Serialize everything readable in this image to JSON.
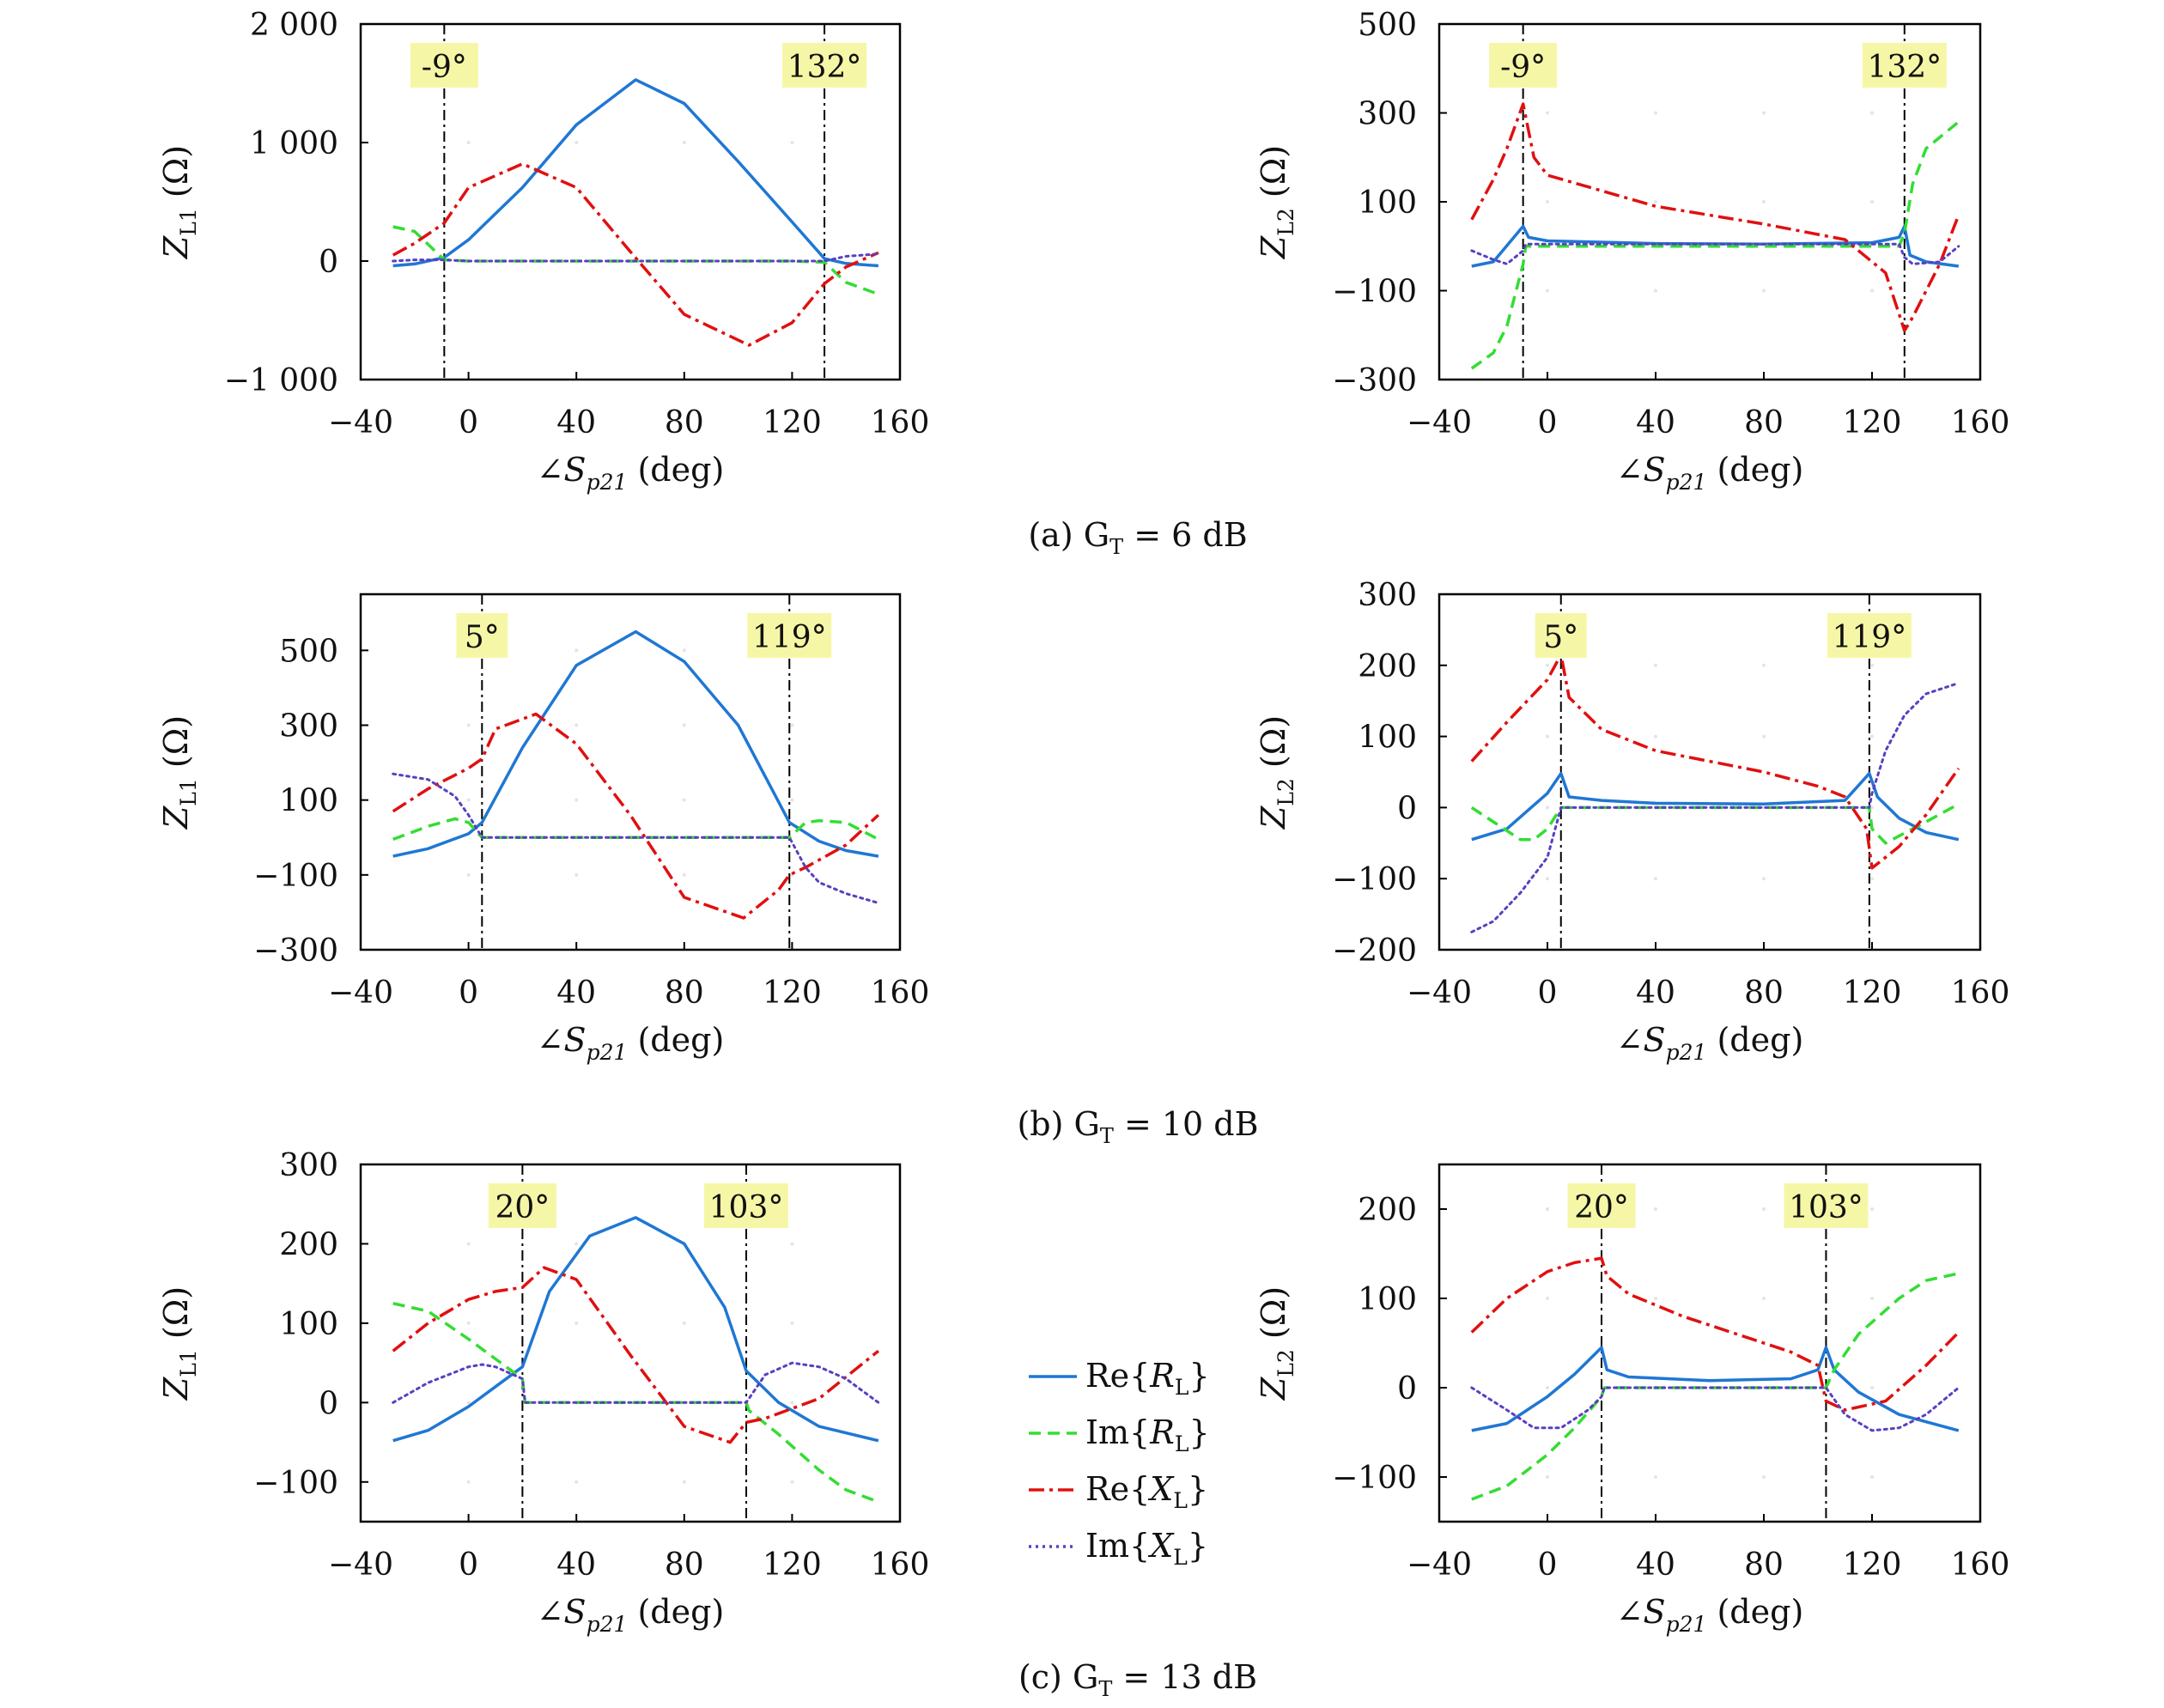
{
  "figure": {
    "captions": [
      "(a) G",
      "(b) G",
      "(c) G"
    ],
    "caption_sub": "T",
    "caption_rest": [
      " = 6 dB",
      " = 10 dB",
      " = 13 dB"
    ]
  },
  "axes_text": {
    "x_prefix": "∠S",
    "x_sub": "p21",
    "x_suffix": " (deg)",
    "y_prefix": "Z",
    "y_sub_left": "L1",
    "y_sub_right": "L2",
    "y_suffix": " (Ω)"
  },
  "legend": {
    "items": [
      {
        "prefix": "Re{",
        "sym": "R",
        "sub": "L",
        "suffix": "}",
        "color": "#1f77d4",
        "style": "solid"
      },
      {
        "prefix": "Im{",
        "sym": "R",
        "sub": "L",
        "suffix": "}",
        "color": "#33dd33",
        "style": "dashed"
      },
      {
        "prefix": "Re{",
        "sym": "X",
        "sub": "L",
        "suffix": "}",
        "color": "#e01010",
        "style": "dashdot"
      },
      {
        "prefix": "Im{",
        "sym": "X",
        "sub": "L",
        "suffix": "}",
        "color": "#5a3fc0",
        "style": "dotted"
      }
    ]
  },
  "colors": {
    "re_r": "#1f77d4",
    "im_r": "#33dd33",
    "re_x": "#e01010",
    "im_x": "#5a3fc0",
    "marker_bg": "#f6f7a6",
    "frame": "#000000"
  },
  "chart_data": [
    {
      "type": "line",
      "panel": "a-left",
      "xlim": [
        -40,
        160
      ],
      "ylim": [
        -1000,
        2000
      ],
      "xticks": [
        -40,
        0,
        40,
        80,
        120,
        160
      ],
      "xtick_labels": [
        "−40",
        "0",
        "40",
        "80",
        "120",
        "160"
      ],
      "yticks": [
        -1000,
        0,
        1000,
        2000
      ],
      "ytick_labels": [
        "−1 000",
        "0",
        "1 000",
        "2 000"
      ],
      "markers": [
        {
          "x": -9,
          "label": "-9°"
        },
        {
          "x": 132,
          "label": "132°"
        }
      ],
      "series": [
        {
          "x": [
            -28,
            -20,
            -9,
            0,
            20,
            40,
            62,
            80,
            100,
            120,
            132,
            140,
            152
          ],
          "y": [
            -40,
            -25,
            30,
            180,
            620,
            1150,
            1530,
            1330,
            840,
            330,
            20,
            -20,
            -40
          ]
        },
        {
          "x": [
            -28,
            -20,
            -9,
            0,
            20,
            40,
            80,
            120,
            132,
            140,
            152
          ],
          "y": [
            290,
            250,
            10,
            0,
            0,
            0,
            0,
            0,
            -10,
            -180,
            -280
          ]
        },
        {
          "x": [
            -28,
            -20,
            -9,
            0,
            20,
            40,
            60,
            80,
            104,
            120,
            132,
            140,
            152
          ],
          "y": [
            50,
            150,
            320,
            620,
            820,
            620,
            80,
            -450,
            -710,
            -520,
            -190,
            -50,
            70
          ]
        },
        {
          "x": [
            -28,
            -20,
            -9,
            0,
            40,
            80,
            120,
            132,
            140,
            152
          ],
          "y": [
            0,
            10,
            10,
            0,
            0,
            0,
            0,
            0,
            40,
            60
          ]
        }
      ]
    },
    {
      "type": "line",
      "panel": "a-right",
      "xlim": [
        -40,
        160
      ],
      "ylim": [
        -300,
        500
      ],
      "xticks": [
        -40,
        0,
        40,
        80,
        120,
        160
      ],
      "xtick_labels": [
        "−40",
        "0",
        "40",
        "80",
        "120",
        "160"
      ],
      "yticks": [
        -300,
        -100,
        100,
        300,
        500
      ],
      "ytick_labels": [
        "−300",
        "−100",
        "100",
        "300",
        "500"
      ],
      "markers": [
        {
          "x": -9,
          "label": "-9°"
        },
        {
          "x": 132,
          "label": "132°"
        }
      ],
      "series": [
        {
          "x": [
            -28,
            -20,
            -9,
            -7,
            0,
            40,
            80,
            120,
            130,
            132,
            134,
            140,
            152
          ],
          "y": [
            -45,
            -35,
            45,
            20,
            12,
            6,
            5,
            8,
            20,
            45,
            -20,
            -35,
            -45
          ]
        },
        {
          "x": [
            -28,
            -20,
            -15,
            -9,
            -8,
            40,
            80,
            130,
            132,
            135,
            140,
            152
          ],
          "y": [
            -275,
            -240,
            -180,
            -40,
            0,
            0,
            0,
            0,
            30,
            140,
            220,
            280
          ]
        },
        {
          "x": [
            -28,
            -20,
            -15,
            -9,
            -5,
            0,
            40,
            80,
            110,
            125,
            132,
            135,
            145,
            152
          ],
          "y": [
            60,
            150,
            220,
            320,
            200,
            160,
            90,
            50,
            15,
            -60,
            -190,
            -160,
            -40,
            70
          ]
        },
        {
          "x": [
            -28,
            -20,
            -15,
            -9,
            -8,
            40,
            80,
            130,
            132,
            135,
            145,
            152
          ],
          "y": [
            -10,
            -30,
            -40,
            -10,
            5,
            5,
            5,
            5,
            -25,
            -40,
            -35,
            0
          ]
        }
      ]
    },
    {
      "type": "line",
      "panel": "b-left",
      "xlim": [
        -40,
        160
      ],
      "ylim": [
        -300,
        650
      ],
      "xticks": [
        -40,
        0,
        40,
        80,
        120,
        160
      ],
      "xtick_labels": [
        "−40",
        "0",
        "40",
        "80",
        "120",
        "160"
      ],
      "yticks": [
        -300,
        -100,
        100,
        300,
        500
      ],
      "ytick_labels": [
        "−300",
        "−100",
        "100",
        "300",
        "500"
      ],
      "markers": [
        {
          "x": 5,
          "label": "5°"
        },
        {
          "x": 119,
          "label": "119°"
        }
      ],
      "series": [
        {
          "x": [
            -28,
            -15,
            0,
            5,
            20,
            40,
            62,
            80,
            100,
            119,
            130,
            140,
            152
          ],
          "y": [
            -50,
            -30,
            10,
            40,
            240,
            460,
            550,
            470,
            300,
            40,
            -10,
            -35,
            -50
          ]
        },
        {
          "x": [
            -28,
            -15,
            -5,
            0,
            5,
            40,
            80,
            119,
            125,
            130,
            140,
            152
          ],
          "y": [
            -5,
            30,
            50,
            40,
            0,
            0,
            0,
            0,
            40,
            45,
            40,
            -5
          ]
        },
        {
          "x": [
            -28,
            -15,
            0,
            5,
            10,
            25,
            40,
            60,
            80,
            102,
            115,
            119,
            125,
            140,
            152
          ],
          "y": [
            70,
            130,
            185,
            210,
            290,
            330,
            250,
            60,
            -160,
            -215,
            -140,
            -100,
            -80,
            -20,
            60
          ]
        },
        {
          "x": [
            -28,
            -15,
            -5,
            0,
            5,
            40,
            80,
            119,
            125,
            130,
            140,
            152
          ],
          "y": [
            170,
            155,
            110,
            60,
            0,
            0,
            0,
            0,
            -80,
            -120,
            -150,
            -175
          ]
        }
      ]
    },
    {
      "type": "line",
      "panel": "b-right",
      "xlim": [
        -40,
        160
      ],
      "ylim": [
        -200,
        300
      ],
      "xticks": [
        -40,
        0,
        40,
        80,
        120,
        160
      ],
      "xtick_labels": [
        "−40",
        "0",
        "40",
        "80",
        "120",
        "160"
      ],
      "yticks": [
        -200,
        -100,
        0,
        100,
        200,
        300
      ],
      "ytick_labels": [
        "−200",
        "−100",
        "0",
        "100",
        "200",
        "300"
      ],
      "markers": [
        {
          "x": 5,
          "label": "5°"
        },
        {
          "x": 119,
          "label": "119°"
        }
      ],
      "series": [
        {
          "x": [
            -28,
            -15,
            0,
            5,
            8,
            20,
            40,
            80,
            110,
            119,
            122,
            130,
            140,
            152
          ],
          "y": [
            -45,
            -30,
            20,
            48,
            15,
            10,
            6,
            5,
            10,
            48,
            15,
            -15,
            -35,
            -45
          ]
        },
        {
          "x": [
            -28,
            -20,
            -10,
            -5,
            0,
            5,
            40,
            80,
            119,
            120,
            125,
            130,
            140,
            152
          ],
          "y": [
            0,
            -20,
            -45,
            -45,
            -30,
            0,
            0,
            0,
            0,
            -30,
            -50,
            -40,
            -20,
            5
          ]
        },
        {
          "x": [
            -28,
            -15,
            0,
            5,
            8,
            20,
            40,
            60,
            80,
            100,
            110,
            118,
            120,
            130,
            140,
            152
          ],
          "y": [
            65,
            120,
            180,
            215,
            155,
            110,
            80,
            65,
            50,
            30,
            15,
            -30,
            -85,
            -55,
            -10,
            55
          ]
        },
        {
          "x": [
            -28,
            -20,
            -10,
            0,
            5,
            40,
            80,
            119,
            120,
            125,
            132,
            140,
            152
          ],
          "y": [
            -175,
            -160,
            -120,
            -70,
            0,
            0,
            0,
            0,
            20,
            80,
            130,
            160,
            175
          ]
        }
      ]
    },
    {
      "type": "line",
      "panel": "c-left",
      "xlim": [
        -40,
        160
      ],
      "ylim": [
        -150,
        300
      ],
      "xticks": [
        -40,
        0,
        40,
        80,
        120,
        160
      ],
      "xtick_labels": [
        "−40",
        "0",
        "40",
        "80",
        "120",
        "160"
      ],
      "yticks": [
        -100,
        0,
        100,
        200,
        300
      ],
      "ytick_labels": [
        "−100",
        "0",
        "100",
        "200",
        "300"
      ],
      "markers": [
        {
          "x": 20,
          "label": "20°"
        },
        {
          "x": 103,
          "label": "103°"
        }
      ],
      "series": [
        {
          "x": [
            -28,
            -15,
            0,
            10,
            20,
            30,
            45,
            62,
            80,
            95,
            103,
            115,
            130,
            152
          ],
          "y": [
            -48,
            -35,
            -5,
            20,
            45,
            140,
            210,
            233,
            200,
            120,
            40,
            0,
            -30,
            -48
          ]
        },
        {
          "x": [
            -28,
            -15,
            0,
            10,
            20,
            21,
            60,
            103,
            104,
            115,
            130,
            140,
            152
          ],
          "y": [
            125,
            115,
            80,
            55,
            30,
            0,
            0,
            0,
            -10,
            -40,
            -85,
            -110,
            -125
          ]
        },
        {
          "x": [
            -28,
            -15,
            0,
            10,
            20,
            28,
            40,
            60,
            80,
            97,
            103,
            110,
            130,
            152
          ],
          "y": [
            65,
            100,
            130,
            140,
            145,
            170,
            155,
            60,
            -30,
            -50,
            -25,
            -20,
            5,
            65
          ]
        },
        {
          "x": [
            -28,
            -15,
            0,
            5,
            10,
            20,
            21,
            60,
            103,
            110,
            120,
            130,
            140,
            152
          ],
          "y": [
            0,
            25,
            45,
            48,
            45,
            30,
            0,
            0,
            0,
            35,
            50,
            45,
            30,
            0
          ]
        }
      ]
    },
    {
      "type": "line",
      "panel": "c-right",
      "xlim": [
        -40,
        160
      ],
      "ylim": [
        -150,
        250
      ],
      "xticks": [
        -40,
        0,
        40,
        80,
        120,
        160
      ],
      "xtick_labels": [
        "−40",
        "0",
        "40",
        "80",
        "120",
        "160"
      ],
      "yticks": [
        -100,
        0,
        100,
        200
      ],
      "ytick_labels": [
        "−100",
        "0",
        "100",
        "200"
      ],
      "markers": [
        {
          "x": 20,
          "label": "20°"
        },
        {
          "x": 103,
          "label": "103°"
        }
      ],
      "series": [
        {
          "x": [
            -28,
            -15,
            0,
            10,
            20,
            22,
            30,
            60,
            90,
            100,
            103,
            106,
            115,
            130,
            152
          ],
          "y": [
            -48,
            -40,
            -10,
            15,
            45,
            20,
            12,
            8,
            10,
            20,
            45,
            20,
            -5,
            -30,
            -48
          ]
        },
        {
          "x": [
            -28,
            -15,
            0,
            10,
            20,
            21,
            60,
            103,
            106,
            115,
            130,
            140,
            152
          ],
          "y": [
            -125,
            -110,
            -75,
            -45,
            -10,
            0,
            0,
            0,
            20,
            60,
            100,
            120,
            128
          ]
        },
        {
          "x": [
            -28,
            -15,
            0,
            10,
            20,
            22,
            30,
            50,
            70,
            90,
            100,
            103,
            110,
            125,
            140,
            152
          ],
          "y": [
            62,
            100,
            130,
            140,
            145,
            125,
            105,
            80,
            60,
            40,
            25,
            -15,
            -25,
            -15,
            25,
            62
          ]
        },
        {
          "x": [
            -28,
            -15,
            -5,
            5,
            15,
            20,
            21,
            60,
            103,
            110,
            120,
            130,
            140,
            152
          ],
          "y": [
            0,
            -25,
            -45,
            -45,
            -25,
            -10,
            0,
            0,
            0,
            -30,
            -48,
            -45,
            -30,
            0
          ]
        }
      ]
    }
  ]
}
